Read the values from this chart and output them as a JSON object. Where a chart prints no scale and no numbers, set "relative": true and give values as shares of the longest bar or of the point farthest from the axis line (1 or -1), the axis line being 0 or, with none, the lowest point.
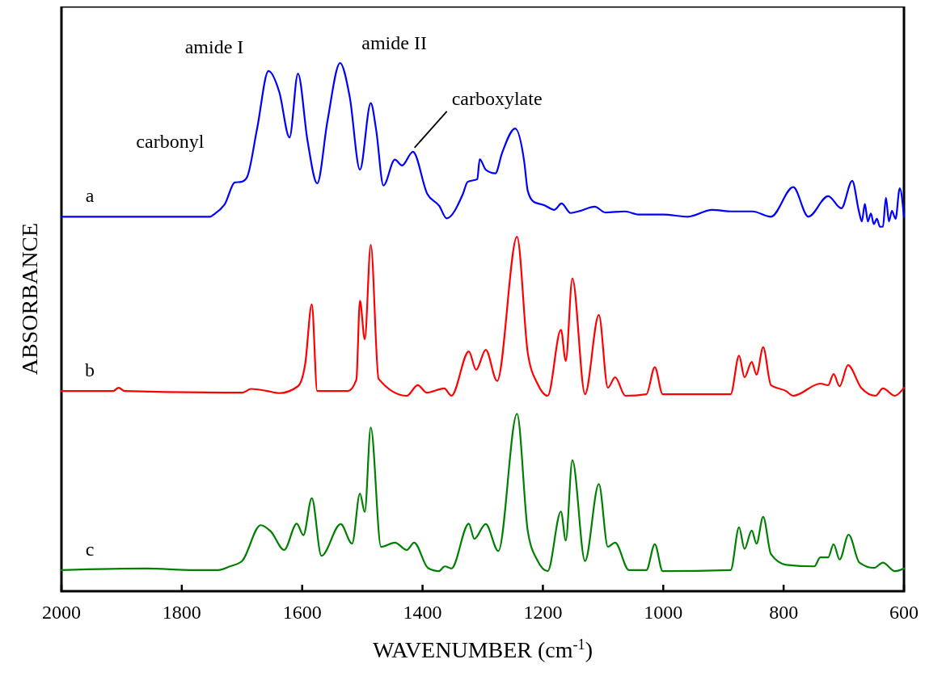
{
  "chart_data": {
    "type": "line",
    "relative": true,
    "xlabel": "WAVENUMBER (cm$^{-1}$)",
    "ylabel": "ABSORBANCE",
    "xlim": [
      2000,
      600
    ],
    "xticks": [
      2000,
      1800,
      1600,
      1400,
      1200,
      1000,
      800,
      600
    ],
    "grid": false,
    "legend": false,
    "line_style": "solid",
    "marker": "none",
    "annotations": [
      {
        "text": "carbonyl",
        "x": 1712,
        "y": 0.775
      },
      {
        "text": "amide I",
        "x": 1656,
        "y": 0.985
      },
      {
        "text": "amide II",
        "x": 1537,
        "y": 1.0
      },
      {
        "text": "carboxylate",
        "x": 1416,
        "y": 0.832
      }
    ],
    "series": [
      {
        "name": "a",
        "color": "#0000ff",
        "x": [
          2000,
          1753,
          1746,
          1728,
          1712,
          1701,
          1692,
          1675,
          1656,
          1638,
          1621,
          1607,
          1591,
          1575,
          1558,
          1537,
          1521,
          1504,
          1486,
          1477,
          1465,
          1446,
          1434,
          1416,
          1392,
          1372,
          1360,
          1333,
          1325,
          1309,
          1305,
          1295,
          1279,
          1268,
          1246,
          1231,
          1225,
          1215,
          1198,
          1181,
          1169,
          1154,
          1138,
          1114,
          1096,
          1064,
          1040,
          1000,
          959,
          919,
          885,
          852,
          821,
          784,
          759,
          726,
          704,
          686,
          675,
          670,
          665,
          660,
          655,
          650,
          645,
          640,
          635,
          630,
          625,
          620,
          614,
          607,
          600
        ],
        "values": [
          0.709,
          0.709,
          0.714,
          0.734,
          0.774,
          0.775,
          0.783,
          0.875,
          0.985,
          0.945,
          0.859,
          0.98,
          0.852,
          0.772,
          0.89,
          1.0,
          0.936,
          0.798,
          0.924,
          0.873,
          0.768,
          0.817,
          0.806,
          0.832,
          0.752,
          0.729,
          0.706,
          0.752,
          0.775,
          0.78,
          0.818,
          0.798,
          0.791,
          0.829,
          0.876,
          0.813,
          0.757,
          0.737,
          0.731,
          0.722,
          0.734,
          0.716,
          0.72,
          0.728,
          0.717,
          0.719,
          0.713,
          0.713,
          0.709,
          0.722,
          0.719,
          0.719,
          0.709,
          0.765,
          0.709,
          0.748,
          0.725,
          0.777,
          0.72,
          0.7,
          0.733,
          0.7,
          0.715,
          0.695,
          0.705,
          0.69,
          0.69,
          0.745,
          0.7,
          0.72,
          0.705,
          0.763,
          0.709
        ]
      },
      {
        "name": "b",
        "color": "#ff0000",
        "x": [
          2000,
          1914,
          1905,
          1895,
          1699,
          1685,
          1658,
          1638,
          1607,
          1595,
          1584,
          1575,
          1524,
          1510,
          1504,
          1496,
          1486,
          1473,
          1426,
          1408,
          1393,
          1364,
          1352,
          1323,
          1311,
          1295,
          1276,
          1243,
          1225,
          1209,
          1192,
          1170,
          1162,
          1151,
          1130,
          1107,
          1092,
          1080,
          1063,
          1028,
          1014,
          1001,
          888,
          874,
          865,
          853,
          845,
          834,
          821,
          796,
          784,
          739,
          726,
          717,
          707,
          693,
          671,
          647,
          635,
          615,
          600
        ],
        "values": [
          0.379,
          0.379,
          0.385,
          0.379,
          0.376,
          0.383,
          0.379,
          0.375,
          0.388,
          0.43,
          0.543,
          0.379,
          0.379,
          0.4,
          0.55,
          0.477,
          0.656,
          0.402,
          0.37,
          0.39,
          0.376,
          0.384,
          0.37,
          0.454,
          0.419,
          0.457,
          0.398,
          0.671,
          0.45,
          0.393,
          0.37,
          0.495,
          0.436,
          0.592,
          0.373,
          0.523,
          0.385,
          0.405,
          0.37,
          0.373,
          0.424,
          0.373,
          0.373,
          0.446,
          0.405,
          0.434,
          0.41,
          0.462,
          0.39,
          0.379,
          0.37,
          0.393,
          0.39,
          0.411,
          0.388,
          0.428,
          0.385,
          0.37,
          0.384,
          0.37,
          0.385
        ]
      },
      {
        "name": "c",
        "color": "#008000",
        "x": [
          2000,
          1860,
          1780,
          1740,
          1720,
          1700,
          1669,
          1652,
          1630,
          1609,
          1598,
          1584,
          1568,
          1536,
          1517,
          1504,
          1496,
          1486,
          1469,
          1446,
          1426,
          1414,
          1391,
          1373,
          1363,
          1352,
          1323,
          1314,
          1295,
          1274,
          1243,
          1225,
          1209,
          1192,
          1170,
          1162,
          1151,
          1130,
          1107,
          1092,
          1080,
          1057,
          1028,
          1014,
          1001,
          888,
          874,
          865,
          853,
          845,
          834,
          821,
          796,
          749,
          739,
          726,
          717,
          707,
          692,
          674,
          650,
          635,
          615,
          600
        ],
        "values": [
          0.04,
          0.043,
          0.04,
          0.04,
          0.047,
          0.057,
          0.125,
          0.113,
          0.078,
          0.128,
          0.106,
          0.176,
          0.067,
          0.127,
          0.09,
          0.185,
          0.15,
          0.31,
          0.084,
          0.092,
          0.078,
          0.092,
          0.044,
          0.038,
          0.047,
          0.043,
          0.128,
          0.099,
          0.127,
          0.076,
          0.336,
          0.113,
          0.058,
          0.038,
          0.151,
          0.096,
          0.248,
          0.057,
          0.203,
          0.084,
          0.092,
          0.04,
          0.04,
          0.089,
          0.038,
          0.04,
          0.121,
          0.08,
          0.115,
          0.09,
          0.141,
          0.07,
          0.05,
          0.047,
          0.064,
          0.064,
          0.089,
          0.06,
          0.107,
          0.054,
          0.044,
          0.054,
          0.038,
          0.043
        ]
      }
    ]
  }
}
